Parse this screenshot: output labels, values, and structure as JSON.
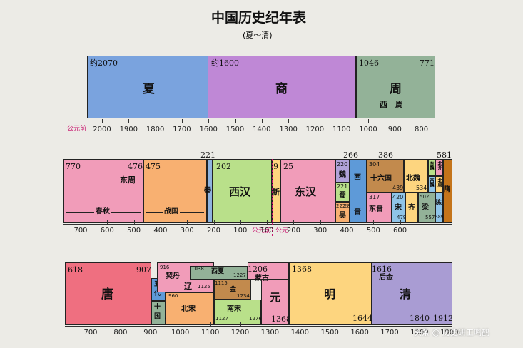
{
  "title": "中国历史纪年表",
  "subtitle": "(夏～清)",
  "colors": {
    "xia": "#7aa3de",
    "shang": "#bf88d6",
    "zhou": "#93b298",
    "pink": "#f19cb9",
    "orange": "#f8b071",
    "green": "#b9e08a",
    "tang": "#ef6f80",
    "ming": "#fdd57f",
    "qing": "#a99cd3"
  },
  "row1": {
    "xia": {
      "start": "约2070",
      "name": "夏"
    },
    "shang": {
      "start": "约1600",
      "name": "商"
    },
    "zhou": {
      "start": "1046",
      "end": "771",
      "name": "周",
      "sub": "西　周"
    },
    "axis_label": "公元前",
    "ticks": [
      "2000",
      "1900",
      "1800",
      "1700",
      "1600",
      "1500",
      "1400",
      "1300",
      "1200",
      "1100",
      "1000",
      "900",
      "800"
    ]
  },
  "row2": {
    "top_labels": {
      "d221": "221",
      "d266": "266",
      "d386": "386",
      "d581": "581"
    },
    "eastzhou": {
      "start": "770",
      "end": "476",
      "name": "东周",
      "sub1": "春秋"
    },
    "warring": {
      "start": "475",
      "sub": "战国"
    },
    "qin": "秦",
    "westhan": {
      "start": "202",
      "name": "西汉"
    },
    "xin": {
      "start": "9",
      "name": "新"
    },
    "easthan": {
      "start": "25",
      "name": "东汉"
    },
    "wei": {
      "start": "220",
      "name": "魏"
    },
    "shu": {
      "start": "221",
      "name": "蜀"
    },
    "wu": {
      "start1": "222",
      "start2": "280",
      "name": "吴"
    },
    "westjin": "西",
    "jin": "晋",
    "sixteen": {
      "start": "304",
      "end": "439",
      "name": "十六国"
    },
    "eastjin": {
      "start": "317",
      "name": "东晋"
    },
    "song": {
      "start": "420",
      "end": "479",
      "name": "宋"
    },
    "qi": "齐",
    "beiwei": {
      "name": "北魏",
      "end": "534"
    },
    "dongwei": "东魏",
    "xiwei": "西魏",
    "beiqi": "北齐",
    "beizhou": "北周",
    "liang": {
      "start": "502",
      "end": "557",
      "name": "梁"
    },
    "chen": {
      "name": "陈",
      "end": "589"
    },
    "sui": "隋",
    "bc_label": "公元前",
    "ad_label": "公元",
    "ticks": [
      "700",
      "600",
      "500",
      "400",
      "300",
      "200",
      "100",
      "100",
      "200",
      "300",
      "400",
      "500",
      "600"
    ]
  },
  "row3": {
    "tang": {
      "start": "618",
      "end": "907",
      "name": "唐"
    },
    "wudai": "五代",
    "shiguo": {
      "name": "十国",
      "end": "979"
    },
    "liao": {
      "start": "916",
      "start2": "1125",
      "name": "辽",
      "khitan": "契丹"
    },
    "xixia": {
      "start": "1038",
      "end": "1227",
      "name": "西夏"
    },
    "jin": {
      "start": "1115",
      "end": "1234",
      "name": "金"
    },
    "beisong": {
      "start": "960",
      "end": "1127",
      "name": "北宋"
    },
    "nansong": {
      "start": "1127",
      "end": "1276",
      "name": "南宋"
    },
    "mongol": {
      "start": "1206",
      "name": "蒙古"
    },
    "yuan": {
      "end": "1368",
      "name": "元"
    },
    "ming": {
      "start": "1368",
      "end": "1644",
      "name": "明"
    },
    "houjin": {
      "start": "1616",
      "name": "后金"
    },
    "qing": {
      "end1": "1840",
      "end2": "1912",
      "name": "清"
    },
    "ticks": [
      "700",
      "800",
      "900",
      "1000",
      "1100",
      "1200",
      "1300",
      "1400",
      "1500",
      "1600",
      "1700",
      "1800",
      "1900"
    ],
    "watermark": "头条 @ 历史研工鸣鹤"
  }
}
